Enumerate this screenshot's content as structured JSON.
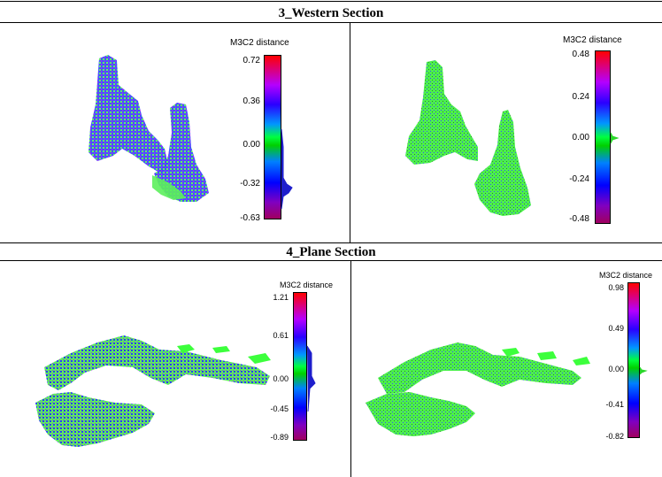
{
  "sections": [
    {
      "title": "3_Western Section"
    },
    {
      "title": "4_Plane Section"
    }
  ],
  "panels": [
    {
      "colorbar_title": "M3C2 distance",
      "ticks": [
        "0.72",
        "0.36",
        "0.00",
        "-0.32",
        "-0.63"
      ]
    },
    {
      "colorbar_title": "M3C2 distance",
      "ticks": [
        "0.48",
        "0.24",
        "0.00",
        "-0.24",
        "-0.48"
      ]
    },
    {
      "colorbar_title": "M3C2 distance",
      "ticks": [
        "1.21",
        "0.61",
        "0.00",
        "-0.45",
        "-0.89"
      ]
    },
    {
      "colorbar_title": "M3C2 distance",
      "ticks": [
        "0.98",
        "0.49",
        "0.00",
        "-0.41",
        "-0.82"
      ]
    }
  ],
  "colors": {
    "green": "#3cff3c",
    "blue": "#2a3cff",
    "purple": "#a020f0",
    "red": "#ff0000"
  }
}
